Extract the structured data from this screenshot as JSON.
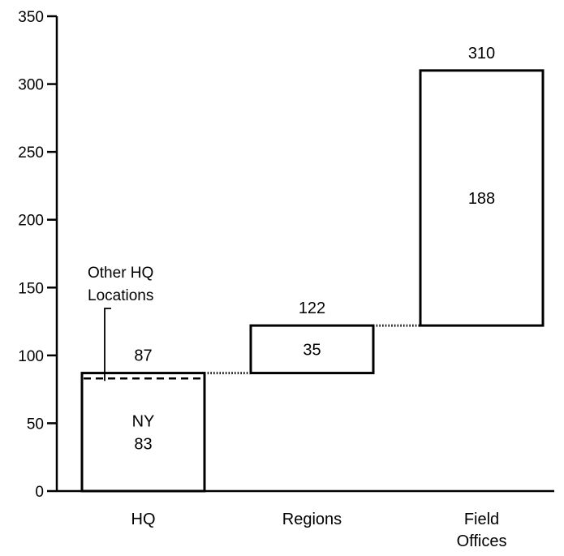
{
  "chart_data": {
    "type": "waterfall",
    "ylim": [
      0,
      350
    ],
    "yticks": [
      0,
      50,
      100,
      150,
      200,
      250,
      300,
      350
    ],
    "categories": [
      "HQ",
      "Regions",
      "Field\nOffices"
    ],
    "bars": [
      {
        "category": "HQ",
        "start": 0,
        "end": 87,
        "total_label": "87",
        "inner_lines": [
          "NY",
          "83"
        ],
        "split_value": 83
      },
      {
        "category": "Regions",
        "start": 87,
        "end": 122,
        "total_label": "122",
        "inner_lines": [
          "35"
        ]
      },
      {
        "category": "Field\nOffices",
        "start": 122,
        "end": 310,
        "total_label": "310",
        "inner_lines": [
          "188"
        ]
      }
    ],
    "annotation": {
      "lines": [
        "Other HQ",
        "Locations"
      ],
      "points_to": "HQ"
    }
  }
}
